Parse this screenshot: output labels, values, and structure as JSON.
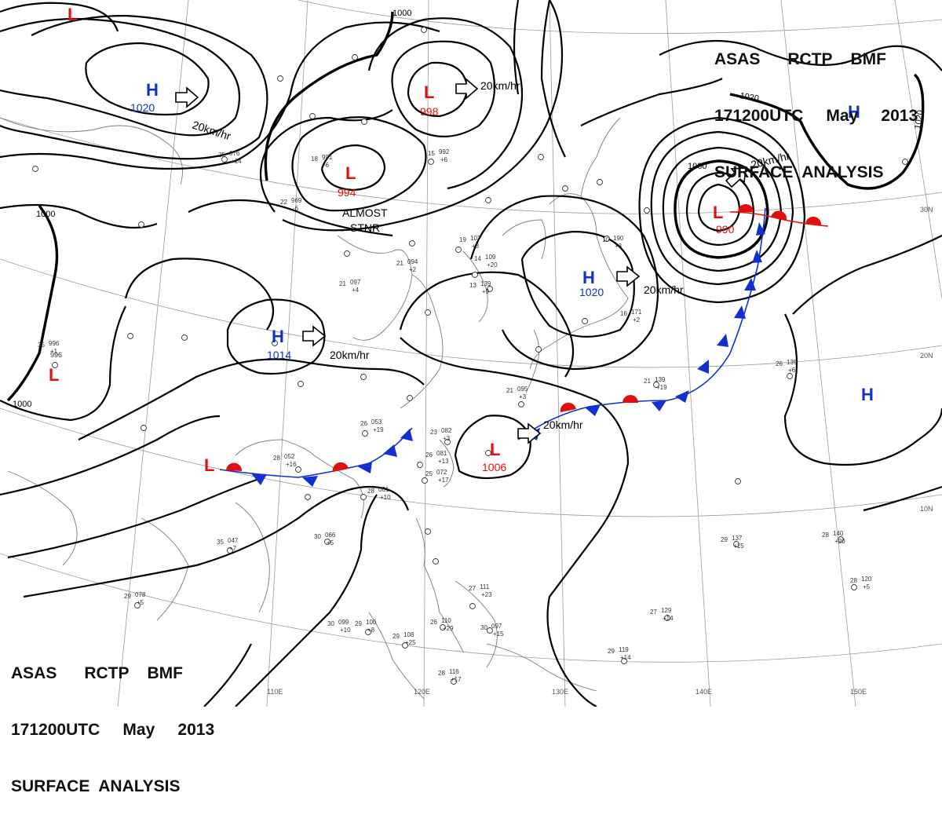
{
  "header_top": {
    "line1": "ASAS      RCTP    BMF",
    "line2": "171200UTC     May     2013",
    "line3": "SURFACE  ANALYSIS"
  },
  "header_bottom": {
    "line1": "ASAS      RCTP    BMF",
    "line2": "171200UTC     May     2013",
    "line3": "SURFACE  ANALYSIS"
  },
  "colors": {
    "low": "#e01010",
    "high": "#1030d0",
    "isobar": "#000000",
    "grid": "#9a9a9a",
    "coast": "#7a7a7a"
  },
  "pressure_centers": [
    {
      "type": "H",
      "value": "1020"
    },
    {
      "type": "L",
      "value": "998"
    },
    {
      "type": "L",
      "value": "994"
    },
    {
      "type": "H",
      "value": "1014"
    },
    {
      "type": "H",
      "value": "1020"
    },
    {
      "type": "L",
      "value": "990"
    },
    {
      "type": "L",
      "value": "1006"
    },
    {
      "type": "L",
      "value": "996"
    },
    {
      "type": "L",
      "value": ""
    },
    {
      "type": "L",
      "value": ""
    },
    {
      "type": "H",
      "value": ""
    },
    {
      "type": "H",
      "value": ""
    }
  ],
  "movement_labels": [
    "20km/hr",
    "20km/hr",
    "20km/hr",
    "20km/hr",
    "20km/hr",
    "20km/hr"
  ],
  "annotations": {
    "stationary_1": "ALMOST",
    "stationary_2": "STNR"
  },
  "isobar_labels": [
    "1000",
    "1000",
    "1000",
    "1000",
    "1020",
    "1020"
  ],
  "longitude_labels": [
    "110E",
    "120E",
    "130E",
    "140E",
    "150E"
  ],
  "latitude_labels": [
    "30N",
    "20N",
    "10N"
  ],
  "station_obs": [
    [
      "22",
      "969",
      "-6"
    ],
    [
      "18",
      "991",
      "-6"
    ],
    [
      "15",
      "992",
      "+6"
    ],
    [
      "21",
      "097",
      "+4"
    ],
    [
      "21",
      "094",
      "+2"
    ],
    [
      "14",
      "109",
      "+20"
    ],
    [
      "19",
      "107",
      "+3"
    ],
    [
      "13",
      "139",
      "+9"
    ],
    [
      "10",
      "190",
      "+3"
    ],
    [
      "16",
      "171",
      "+2"
    ],
    [
      "21",
      "139",
      "+19"
    ],
    [
      "26",
      "139",
      "+6"
    ],
    [
      "21",
      "095",
      "+3"
    ],
    [
      "23",
      "082",
      "+3"
    ],
    [
      "26",
      "081",
      "+13"
    ],
    [
      "25",
      "072",
      "+17"
    ],
    [
      "28",
      "081",
      "+10"
    ],
    [
      "28",
      "052",
      "+16"
    ],
    [
      "26",
      "053",
      "+19"
    ],
    [
      "30",
      "099",
      "+10"
    ],
    [
      "35",
      "047",
      "+7"
    ],
    [
      "30",
      "066",
      "+5"
    ],
    [
      "29",
      "078",
      "+5"
    ],
    [
      "29",
      "100",
      "+8"
    ],
    [
      "29",
      "108",
      "+25"
    ],
    [
      "26",
      "110",
      "+29"
    ],
    [
      "28",
      "116",
      "+17"
    ],
    [
      "27",
      "129",
      "+14"
    ],
    [
      "29",
      "119",
      "+14"
    ],
    [
      "29",
      "137",
      "+15"
    ],
    [
      "28",
      "140",
      "+20"
    ],
    [
      "28",
      "120",
      "+5"
    ],
    [
      "35",
      "996",
      "+1"
    ],
    [
      "25",
      "076",
      "+14"
    ],
    [
      "27",
      "111",
      "+23"
    ],
    [
      "30",
      "097",
      "+15"
    ]
  ]
}
